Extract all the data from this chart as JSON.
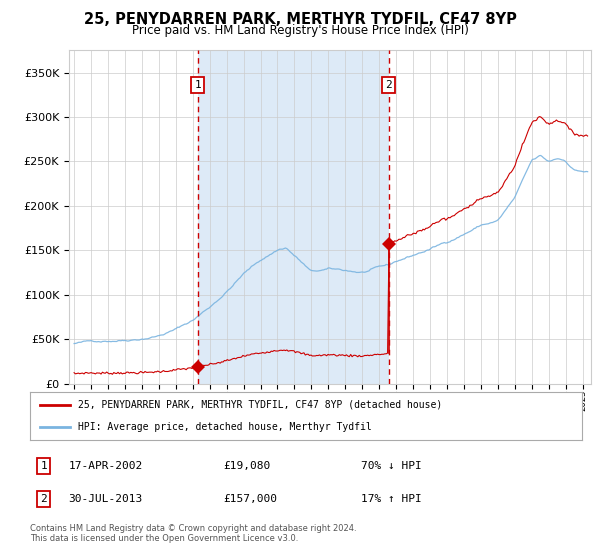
{
  "title": "25, PENYDARREN PARK, MERTHYR TYDFIL, CF47 8YP",
  "subtitle": "Price paid vs. HM Land Registry's House Price Index (HPI)",
  "legend_line1": "25, PENYDARREN PARK, MERTHYR TYDFIL, CF47 8YP (detached house)",
  "legend_line2": "HPI: Average price, detached house, Merthyr Tydfil",
  "label1_date": "17-APR-2002",
  "label1_price": "£19,080",
  "label1_hpi": "70% ↓ HPI",
  "label2_date": "30-JUL-2013",
  "label2_price": "£157,000",
  "label2_hpi": "17% ↑ HPI",
  "sale1_year": 2002.29,
  "sale1_price": 19080,
  "sale2_year": 2013.58,
  "sale2_price": 157000,
  "hpi_color": "#7ab4e0",
  "price_color": "#cc0000",
  "bg_color": "#ddeaf7",
  "plot_bg": "#ffffff",
  "grid_color": "#cccccc",
  "footer": "Contains HM Land Registry data © Crown copyright and database right 2024.\nThis data is licensed under the Open Government Licence v3.0.",
  "ylim_max": 375000,
  "xmin": 1994.7,
  "xmax": 2025.5
}
